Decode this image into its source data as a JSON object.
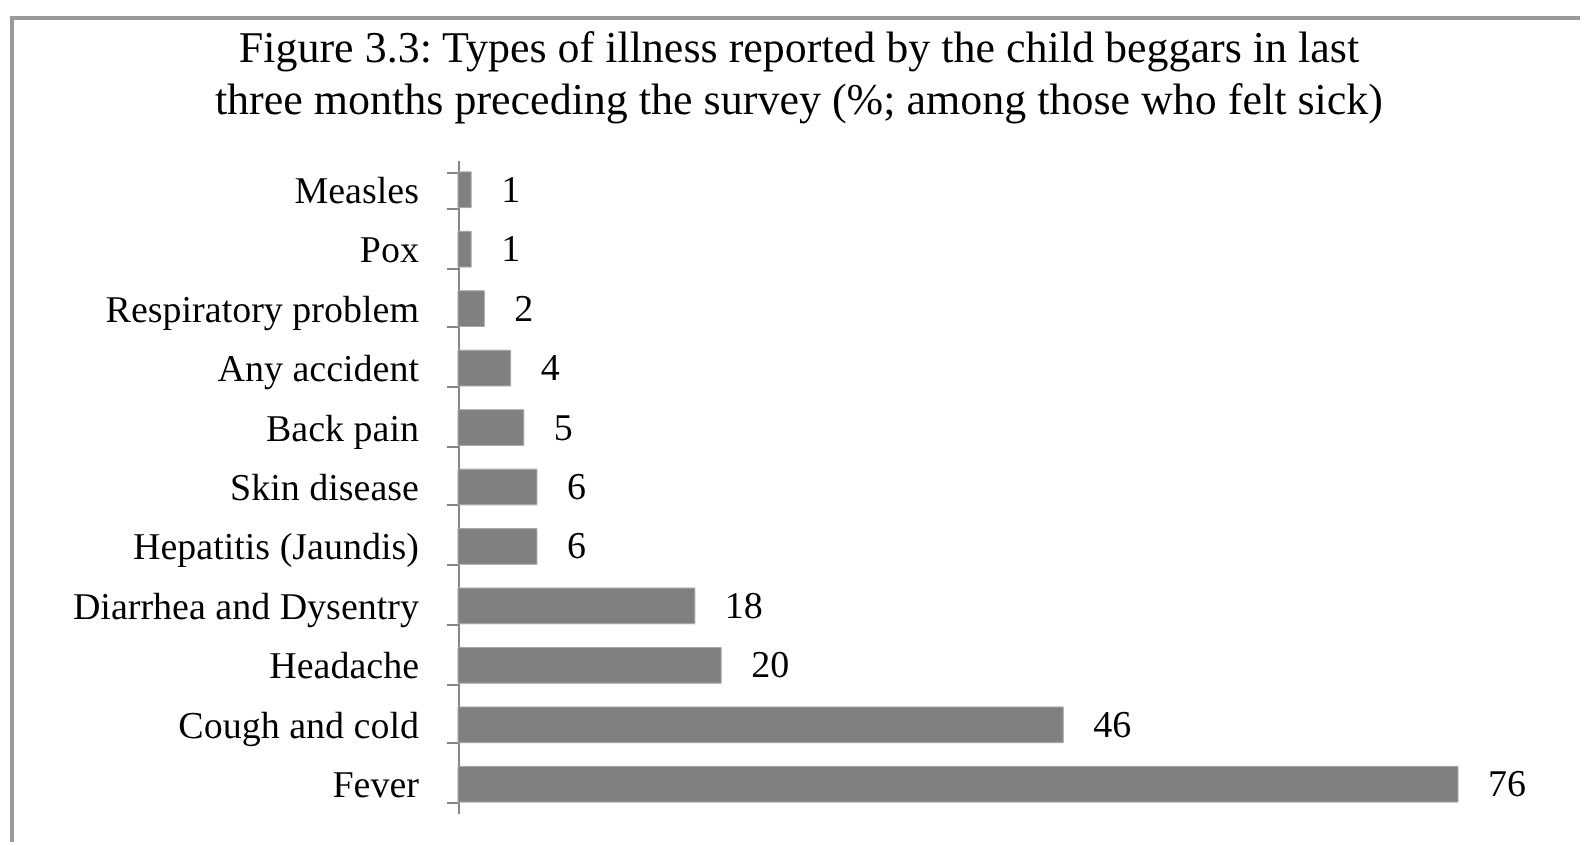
{
  "chart_data": {
    "type": "bar",
    "orientation": "horizontal",
    "title": "Figure 3.3: Types of illness reported by the child beggars in last three months preceding the survey (%; among those who felt sick)",
    "categories": [
      "Measles",
      "Pox",
      "Respiratory problem",
      "Any accident",
      "Back pain",
      "Skin disease",
      "Hepatitis (Jaundis)",
      "Diarrhea and Dysentry",
      "Headache",
      "Cough and cold",
      "Fever"
    ],
    "values": [
      1,
      1,
      2,
      4,
      5,
      6,
      6,
      18,
      20,
      46,
      76
    ],
    "color": "#808080",
    "data_labels": true
  }
}
